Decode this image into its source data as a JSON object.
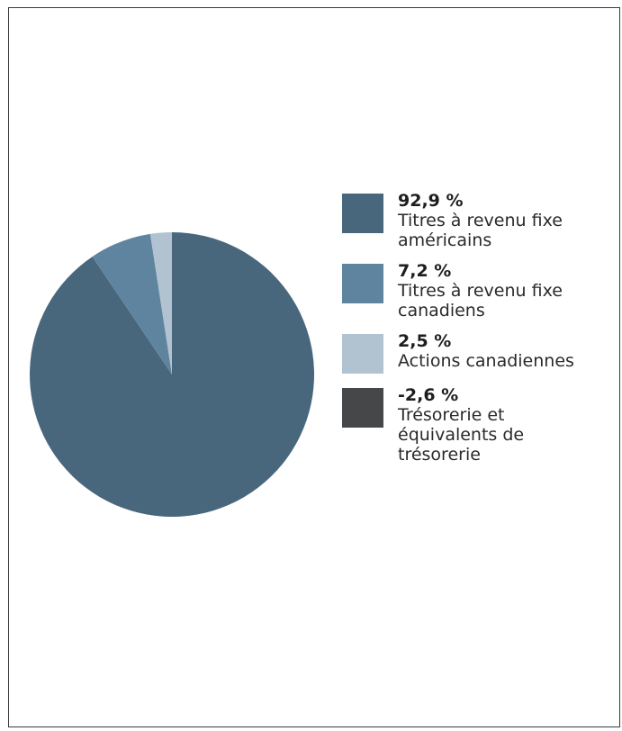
{
  "chart_data": {
    "type": "pie",
    "slices": [
      {
        "value_label": "92,9 %",
        "label": "Titres à revenu fixe américains",
        "value": 92.9,
        "color": "#48677d"
      },
      {
        "value_label": "7,2 %",
        "label": "Titres à revenu fixe canadiens",
        "value": 7.2,
        "color": "#5f849f"
      },
      {
        "value_label": "2,5 %",
        "label": "Actions canadiennes",
        "value": 2.5,
        "color": "#b1c3d0"
      },
      {
        "value_label": "-2,6 %",
        "label": "Trésorerie et équivalents de trésorerie",
        "value": -2.6,
        "color": "#454749"
      }
    ],
    "legend_position": "right"
  }
}
